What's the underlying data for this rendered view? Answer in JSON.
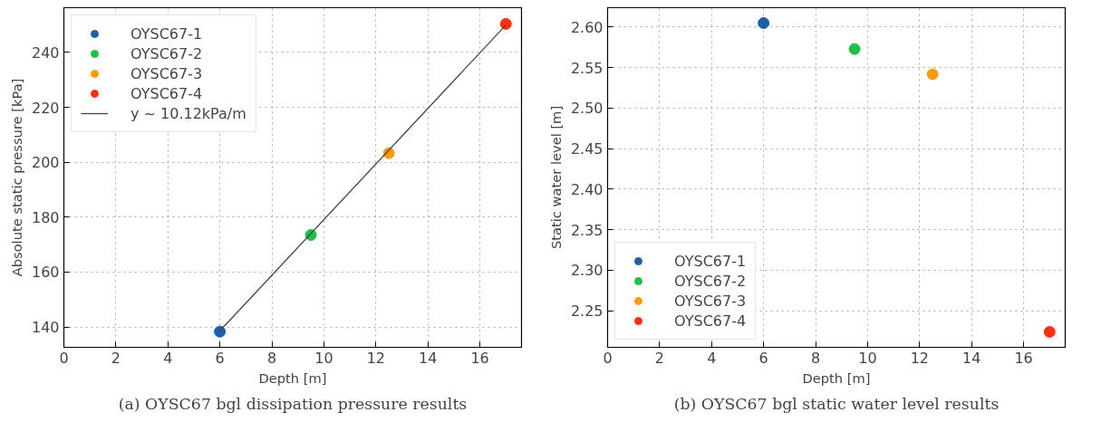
{
  "chart_data": [
    {
      "type": "scatter",
      "title": "(a) OYSC67 bgl dissipation pressure results",
      "xlabel": "Depth [m]",
      "ylabel": "Absolute static pressure [kPa]",
      "xlim": [
        0,
        17.6
      ],
      "ylim": [
        132.6,
        256.3
      ],
      "xticks": [
        0,
        2,
        4,
        6,
        8,
        10,
        12,
        14,
        16
      ],
      "yticks": [
        140,
        160,
        180,
        200,
        220,
        240
      ],
      "grid": true,
      "legend": "top left",
      "marker": "circle",
      "series": [
        {
          "name": "OYSC67-1",
          "color": "#1f5fa8",
          "x": [
            6.0
          ],
          "values": [
            138.3
          ]
        },
        {
          "name": "OYSC67-2",
          "color": "#1fbf4a",
          "x": [
            9.5
          ],
          "values": [
            173.5
          ]
        },
        {
          "name": "OYSC67-3",
          "color": "#ff9a10",
          "x": [
            12.5
          ],
          "values": [
            203.3
          ]
        },
        {
          "name": "OYSC67-4",
          "color": "#ff3010",
          "x": [
            17.0
          ],
          "values": [
            250.4
          ]
        },
        {
          "name": "y ~ 10.12kPa/m",
          "type": "line",
          "marker": "none",
          "color": "#444444",
          "line_style": "solid",
          "x": [
            6.0,
            17.0
          ],
          "values": [
            138.6,
            250.0
          ]
        }
      ]
    },
    {
      "type": "scatter",
      "title": "(b) OYSC67 bgl static water level results",
      "xlabel": "Depth [m]",
      "ylabel": "Static water level [m]",
      "xlim": [
        0,
        17.6
      ],
      "ylim": [
        2.205,
        2.624
      ],
      "xticks": [
        0,
        2,
        4,
        6,
        8,
        10,
        12,
        14,
        16
      ],
      "yticks": [
        {
          "value": 2.25,
          "label": "2.25"
        },
        {
          "value": 2.3,
          "label": "2.30"
        },
        {
          "value": 2.35,
          "label": "2.35"
        },
        {
          "value": 2.4,
          "label": "2.40"
        },
        {
          "value": 2.45,
          "label": "2.45"
        },
        {
          "value": 2.5,
          "label": "2.50"
        },
        {
          "value": 2.55,
          "label": "2.55"
        },
        {
          "value": 2.6,
          "label": "2.60"
        }
      ],
      "grid": true,
      "legend": "bottom left",
      "marker": "circle",
      "series": [
        {
          "name": "OYSC67-1",
          "color": "#1f5fa8",
          "x": [
            6.0
          ],
          "values": [
            2.605
          ]
        },
        {
          "name": "OYSC67-2",
          "color": "#1fbf4a",
          "x": [
            9.5
          ],
          "values": [
            2.573
          ]
        },
        {
          "name": "OYSC67-3",
          "color": "#ff9a10",
          "x": [
            12.5
          ],
          "values": [
            2.542
          ]
        },
        {
          "name": "OYSC67-4",
          "color": "#ff3010",
          "x": [
            17.0
          ],
          "values": [
            2.224
          ]
        }
      ]
    }
  ]
}
